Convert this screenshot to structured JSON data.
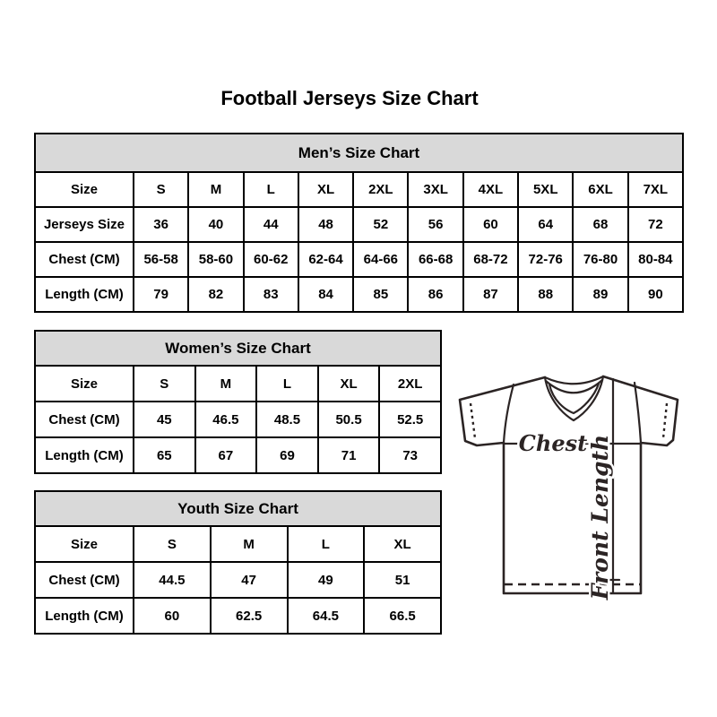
{
  "page": {
    "title": "Football Jerseys Size Chart"
  },
  "tables": {
    "mens": {
      "title": "Men’s Size Chart",
      "rows": [
        [
          "Size",
          "S",
          "M",
          "L",
          "XL",
          "2XL",
          "3XL",
          "4XL",
          "5XL",
          "6XL",
          "7XL"
        ],
        [
          "Jerseys Size",
          "36",
          "40",
          "44",
          "48",
          "52",
          "56",
          "60",
          "64",
          "68",
          "72"
        ],
        [
          "Chest (CM)",
          "56-58",
          "58-60",
          "60-62",
          "62-64",
          "64-66",
          "66-68",
          "68-72",
          "72-76",
          "76-80",
          "80-84"
        ],
        [
          "Length (CM)",
          "79",
          "82",
          "83",
          "84",
          "85",
          "86",
          "87",
          "88",
          "89",
          "90"
        ]
      ]
    },
    "womens": {
      "title": "Women’s Size Chart",
      "rows": [
        [
          "Size",
          "S",
          "M",
          "L",
          "XL",
          "2XL"
        ],
        [
          "Chest (CM)",
          "45",
          "46.5",
          "48.5",
          "50.5",
          "52.5"
        ],
        [
          "Length (CM)",
          "65",
          "67",
          "69",
          "71",
          "73"
        ]
      ]
    },
    "youth": {
      "title": "Youth Size Chart",
      "rows": [
        [
          "Size",
          "S",
          "M",
          "L",
          "XL"
        ],
        [
          "Chest (CM)",
          "44.5",
          "47",
          "49",
          "51"
        ],
        [
          "Length (CM)",
          "60",
          "62.5",
          "64.5",
          "66.5"
        ]
      ]
    }
  },
  "diagram": {
    "chest_label": "Chest",
    "front_length_label": "Front Length"
  },
  "colors": {
    "header_bg": "#d9d9d9",
    "table_border": "#000000",
    "text": "#000000",
    "drawing_line": "#2b2424"
  }
}
